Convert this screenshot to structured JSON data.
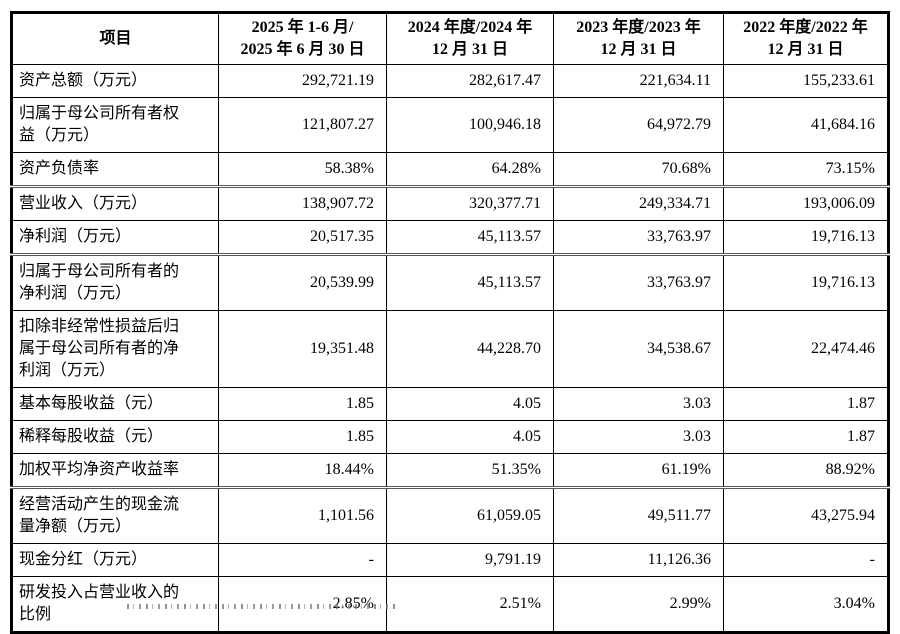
{
  "table": {
    "item_col_header": "项目",
    "period_headers": [
      {
        "line1": "2025 年 1-6 月/",
        "line2": "2025 年 6 月 30 日"
      },
      {
        "line1": "2024 年度/2024 年",
        "line2": "12 月 31 日"
      },
      {
        "line1": "2023 年度/2023 年",
        "line2": "12 月 31 日"
      },
      {
        "line1": "2022 年度/2022 年",
        "line2": "12 月 31 日"
      }
    ],
    "rows": [
      {
        "label": "资产总额（万元）",
        "values": [
          "292,721.19",
          "282,617.47",
          "221,634.11",
          "155,233.61"
        ]
      },
      {
        "label": "归属于母公司所有者权益（万元）",
        "values": [
          "121,807.27",
          "100,946.18",
          "64,972.79",
          "41,684.16"
        ]
      },
      {
        "label": "资产负债率",
        "values": [
          "58.38%",
          "64.28%",
          "70.68%",
          "73.15%"
        ]
      },
      {
        "label": "营业收入（万元）",
        "values": [
          "138,907.72",
          "320,377.71",
          "249,334.71",
          "193,006.09"
        ]
      },
      {
        "label": "净利润（万元）",
        "values": [
          "20,517.35",
          "45,113.57",
          "33,763.97",
          "19,716.13"
        ]
      },
      {
        "label": "归属于母公司所有者的净利润（万元）",
        "values": [
          "20,539.99",
          "45,113.57",
          "33,763.97",
          "19,716.13"
        ]
      },
      {
        "label": "扣除非经常性损益后归属于母公司所有者的净利润（万元）",
        "values": [
          "19,351.48",
          "44,228.70",
          "34,538.67",
          "22,474.46"
        ]
      },
      {
        "label": "基本每股收益（元）",
        "values": [
          "1.85",
          "4.05",
          "3.03",
          "1.87"
        ]
      },
      {
        "label": "稀释每股收益（元）",
        "values": [
          "1.85",
          "4.05",
          "3.03",
          "1.87"
        ]
      },
      {
        "label": "加权平均净资产收益率",
        "values": [
          "18.44%",
          "51.35%",
          "61.19%",
          "88.92%"
        ]
      },
      {
        "label": "经营活动产生的现金流量净额（万元）",
        "values": [
          "1,101.56",
          "61,059.05",
          "49,511.77",
          "43,275.94"
        ]
      },
      {
        "label": "现金分红（万元）",
        "values": [
          "-",
          "9,791.19",
          "11,126.36",
          "-"
        ]
      },
      {
        "label": "研发投入占营业收入的比例",
        "values": [
          "2.85%",
          "2.51%",
          "2.99%",
          "3.04%"
        ]
      }
    ]
  }
}
